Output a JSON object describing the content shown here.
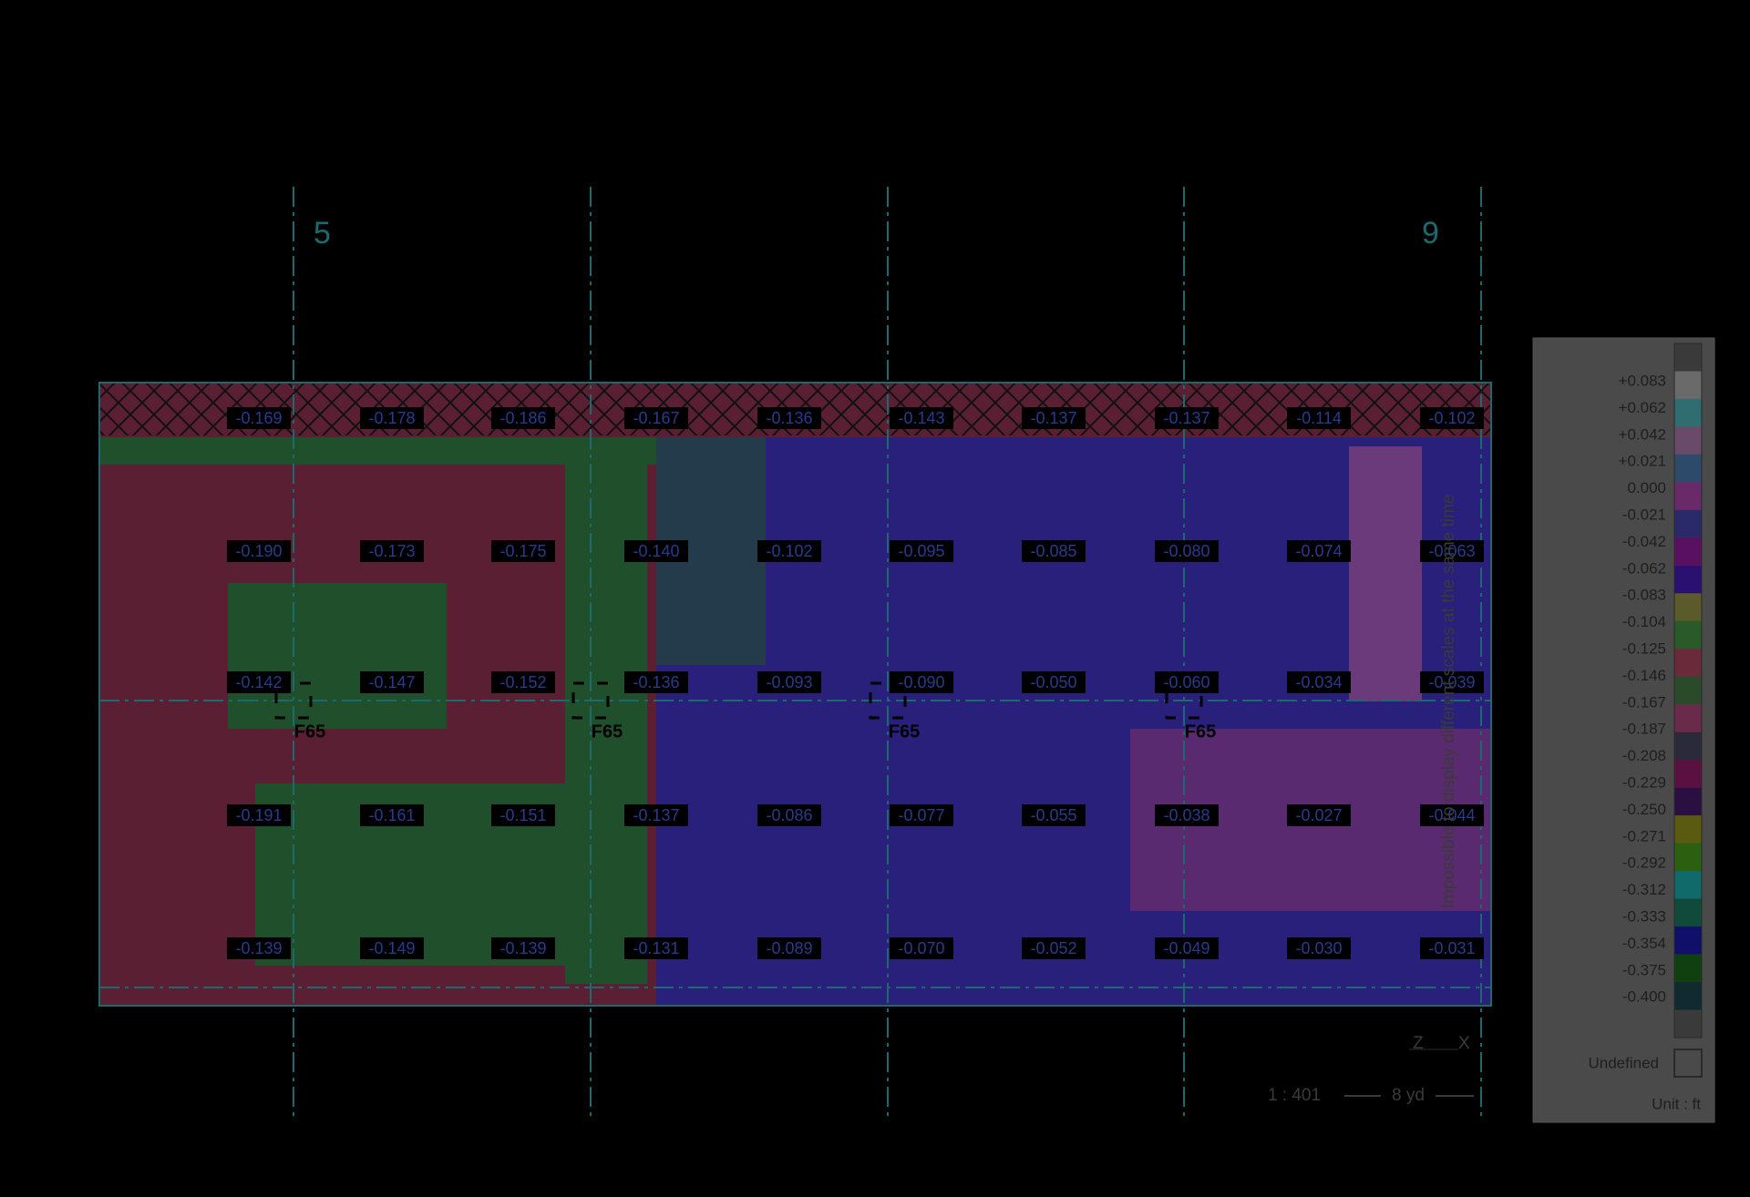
{
  "grid_axes": [
    "5",
    "9"
  ],
  "column_markers": [
    "F65",
    "F65",
    "F65",
    "F65"
  ],
  "measurements": [
    [
      "-0.169",
      "-0.178",
      "-0.186",
      "-0.167",
      "-0.136",
      "-0.143",
      "-0.137",
      "-0.137",
      "-0.114",
      "-0.102"
    ],
    [
      "-0.190",
      "-0.173",
      "-0.175",
      "-0.140",
      "-0.102",
      "-0.095",
      "-0.085",
      "-0.080",
      "-0.074",
      "-0.063"
    ],
    [
      "-0.142",
      "-0.147",
      "-0.152",
      "-0.136",
      "-0.093",
      "-0.090",
      "-0.050",
      "-0.060",
      "-0.034",
      "-0.039"
    ],
    [
      "-0.191",
      "-0.161",
      "-0.151",
      "-0.137",
      "-0.086",
      "-0.077",
      "-0.055",
      "-0.038",
      "-0.027",
      "-0.044"
    ],
    [
      "-0.139",
      "-0.149",
      "-0.139",
      "-0.131",
      "-0.089",
      "-0.070",
      "-0.052",
      "-0.049",
      "-0.030",
      "-0.031"
    ]
  ],
  "legend": {
    "labels": [
      "+0.083",
      "+0.062",
      "+0.042",
      "+0.021",
      "0.000",
      "-0.021",
      "-0.042",
      "-0.062",
      "-0.083",
      "-0.104",
      "-0.125",
      "-0.146",
      "-0.167",
      "-0.187",
      "-0.208",
      "-0.229",
      "-0.250",
      "-0.271",
      "-0.292",
      "-0.312",
      "-0.333",
      "-0.354",
      "-0.375",
      "-0.400"
    ],
    "colors": [
      "#3a3a3a",
      "#6a6a6a",
      "#2f6d70",
      "#6a4a6a",
      "#2e4a6a",
      "#6a2a6a",
      "#2a2a6a",
      "#5a1060",
      "#2a1070",
      "#5a5a2a",
      "#2a5a2a",
      "#6a2a3a",
      "#2a4a2a",
      "#6a2a4a",
      "#2a2a3a",
      "#5a1040",
      "#2a1040",
      "#5a5a10",
      "#2a6010",
      "#106a6a",
      "#104a3a",
      "#10106a",
      "#104010",
      "#102a30",
      "#3a3a3a"
    ],
    "undefined_label": "Undefined",
    "unit": "Unit : ft",
    "notice": "Impossible to display different scales at the same time"
  },
  "scale": {
    "ratio": "1 : 401",
    "bar": "8 yd"
  },
  "axes_gizmo": [
    "Z",
    "X"
  ]
}
